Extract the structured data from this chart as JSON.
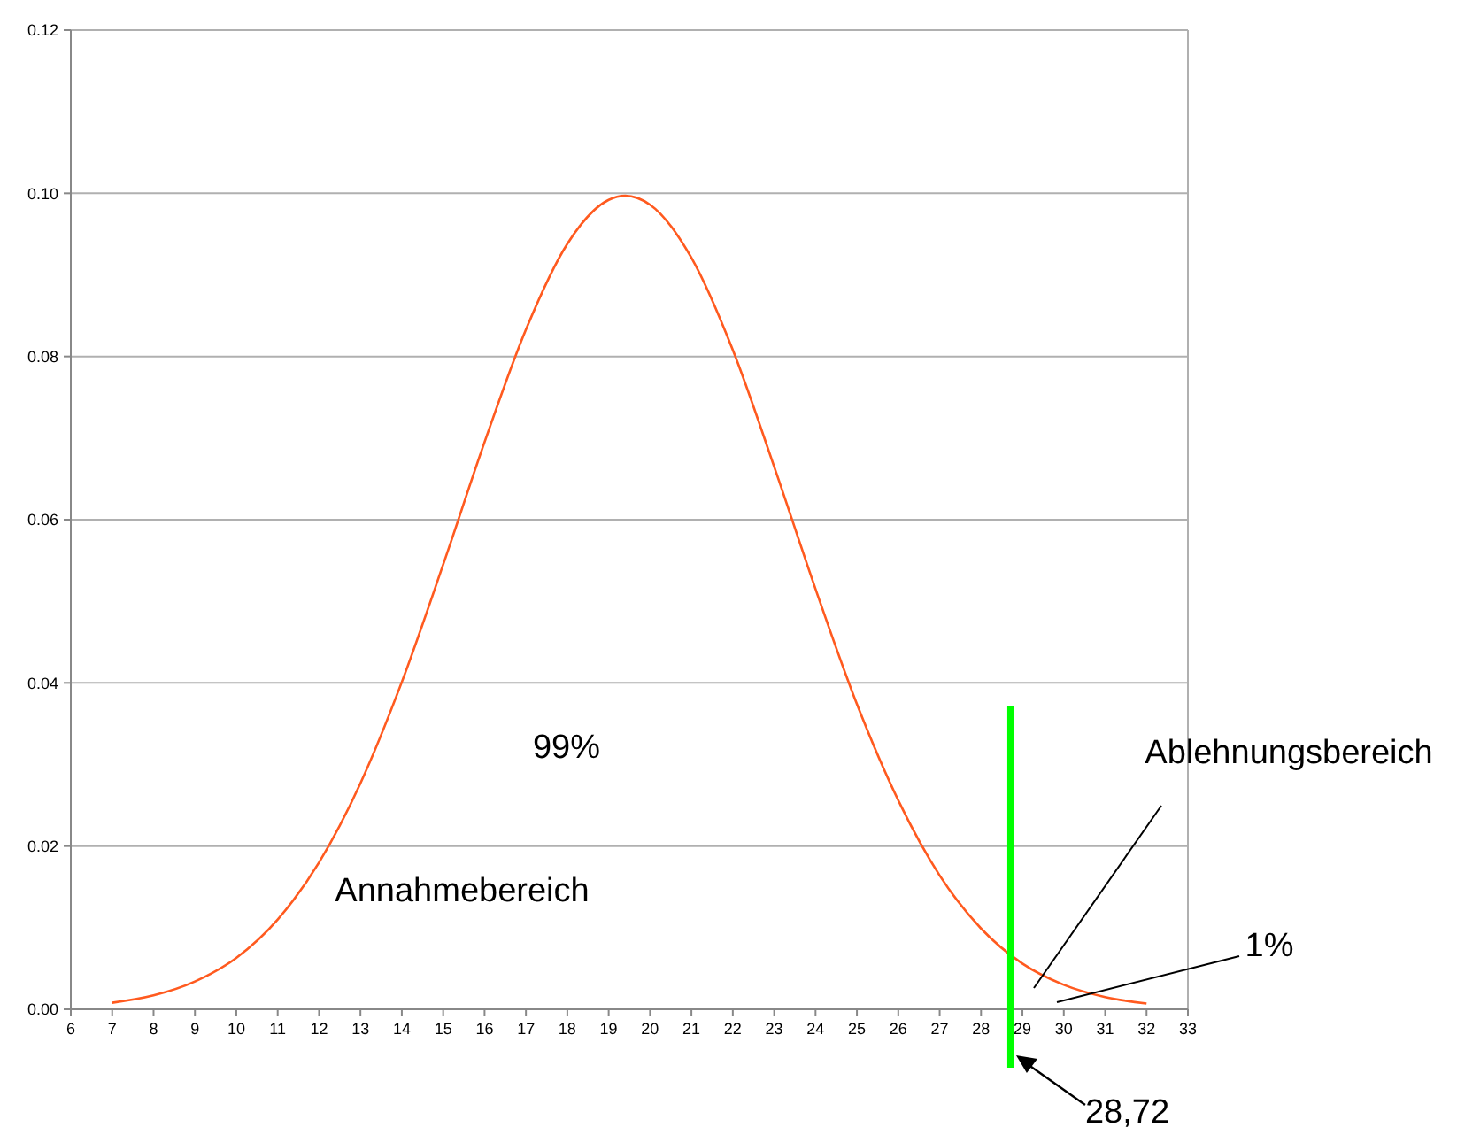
{
  "chart_data": {
    "type": "line",
    "x": [
      7,
      8,
      9,
      10,
      11,
      12,
      13,
      14,
      15,
      16,
      17,
      18,
      19,
      19.4,
      20,
      21,
      22,
      23,
      24,
      25,
      26,
      27,
      28,
      29,
      30,
      31,
      32
    ],
    "series": [
      {
        "color": "#ff5a1f",
        "values": [
          0.0008,
          0.0017,
          0.0034,
          0.0063,
          0.011,
          0.018,
          0.0277,
          0.0401,
          0.0545,
          0.0695,
          0.0833,
          0.0938,
          0.0992,
          0.0997,
          0.0986,
          0.0921,
          0.0808,
          0.0665,
          0.0515,
          0.0374,
          0.0256,
          0.0164,
          0.0099,
          0.0056,
          0.003,
          0.0015,
          0.0007
        ]
      }
    ],
    "xlim": [
      6,
      33
    ],
    "xticks": [
      6,
      7,
      8,
      9,
      10,
      11,
      12,
      13,
      14,
      15,
      16,
      17,
      18,
      19,
      20,
      21,
      22,
      23,
      24,
      25,
      26,
      27,
      28,
      29,
      30,
      31,
      32,
      33
    ],
    "ylim": [
      0,
      0.12
    ],
    "yticks": [
      {
        "value": 0,
        "label": "0.00"
      },
      {
        "value": 0.02,
        "label": "0.02"
      },
      {
        "value": 0.04,
        "label": "0.04"
      },
      {
        "value": 0.06,
        "label": "0.06"
      },
      {
        "value": 0.08,
        "label": "0.08"
      },
      {
        "value": 0.1,
        "label": "0.10"
      },
      {
        "value": 0.12,
        "label": "0.12"
      }
    ],
    "grid": "y",
    "line_style": "solid",
    "ref_lines": [
      {
        "axis": "x",
        "value": 28.72,
        "label": "28,72",
        "color": "#00ff00"
      }
    ],
    "annotations": [
      "99%",
      "Annahmebereich",
      "Ablehnungsbereich",
      "1%"
    ]
  }
}
